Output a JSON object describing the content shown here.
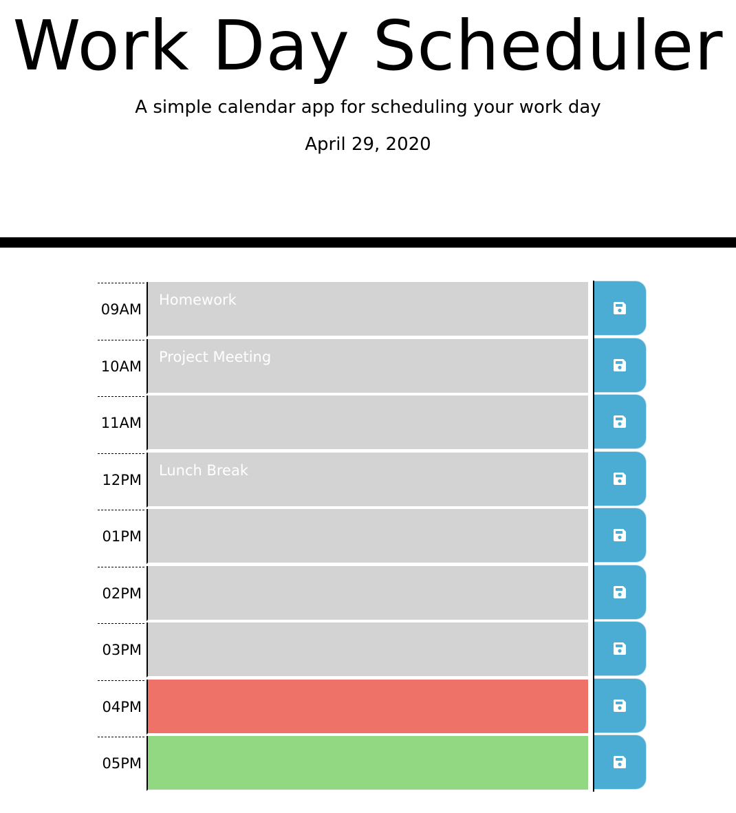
{
  "header": {
    "title": "Work Day Scheduler",
    "lead": "A simple calendar app for scheduling your work day",
    "current_day": "April 29, 2020"
  },
  "colors": {
    "past": "#d3d3d3",
    "present": "#ee7268",
    "future": "#92d883",
    "save_button": "#4bacd4"
  },
  "schedule": [
    {
      "hour": "09AM",
      "text": "Homework",
      "state": "past",
      "save_icon": "floppy-disk-icon"
    },
    {
      "hour": "10AM",
      "text": "Project Meeting",
      "state": "past",
      "save_icon": "floppy-disk-icon"
    },
    {
      "hour": "11AM",
      "text": "",
      "state": "past",
      "save_icon": "floppy-disk-icon"
    },
    {
      "hour": "12PM",
      "text": "Lunch Break",
      "state": "past",
      "save_icon": "floppy-disk-icon"
    },
    {
      "hour": "01PM",
      "text": "",
      "state": "past",
      "save_icon": "floppy-disk-icon"
    },
    {
      "hour": "02PM",
      "text": "",
      "state": "past",
      "save_icon": "floppy-disk-icon"
    },
    {
      "hour": "03PM",
      "text": "",
      "state": "past",
      "save_icon": "floppy-disk-icon"
    },
    {
      "hour": "04PM",
      "text": "",
      "state": "present",
      "save_icon": "floppy-disk-icon"
    },
    {
      "hour": "05PM",
      "text": "",
      "state": "future",
      "save_icon": "floppy-disk-icon"
    }
  ]
}
